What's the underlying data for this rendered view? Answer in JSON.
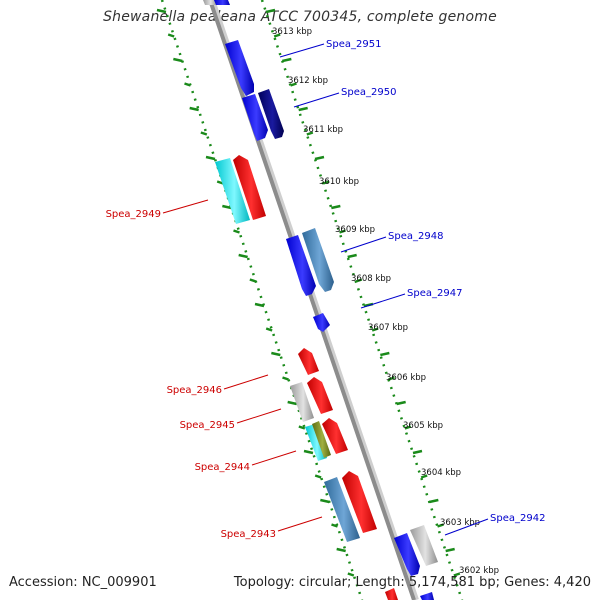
{
  "title": "Shewanella pealeana ATCC 700345, complete genome",
  "footer": {
    "accession": "Accession: NC_009901",
    "summary": "Topology: circular; Length: 5,174,581 bp; Genes: 4,420"
  },
  "colors": {
    "backbone": "#8c8c8c",
    "tick": "#1a8a1a",
    "forward_label": "#0000cc",
    "reverse_label": "#cc0000",
    "blue": "#0000ff",
    "navy": "#000080",
    "steelblue": "#4682b4",
    "red": "#ff0000",
    "cyan": "#00e5ee",
    "olive": "#7a8c1e",
    "gray": "#b8b8b8"
  },
  "scale": {
    "unit": "kbp",
    "labels": [
      "3613 kbp",
      "3612 kbp",
      "3611 kbp",
      "3610 kbp",
      "3609 kbp",
      "3608 kbp",
      "3607 kbp",
      "3606 kbp",
      "3605 kbp",
      "3604 kbp",
      "3603 kbp",
      "3602 kbp"
    ]
  },
  "gene_labels": {
    "forward": [
      "Spea_2951",
      "Spea_2950",
      "Spea_2948",
      "Spea_2947",
      "Spea_2942"
    ],
    "reverse": [
      "Spea_2949",
      "Spea_2946",
      "Spea_2945",
      "Spea_2944",
      "Spea_2943"
    ]
  }
}
